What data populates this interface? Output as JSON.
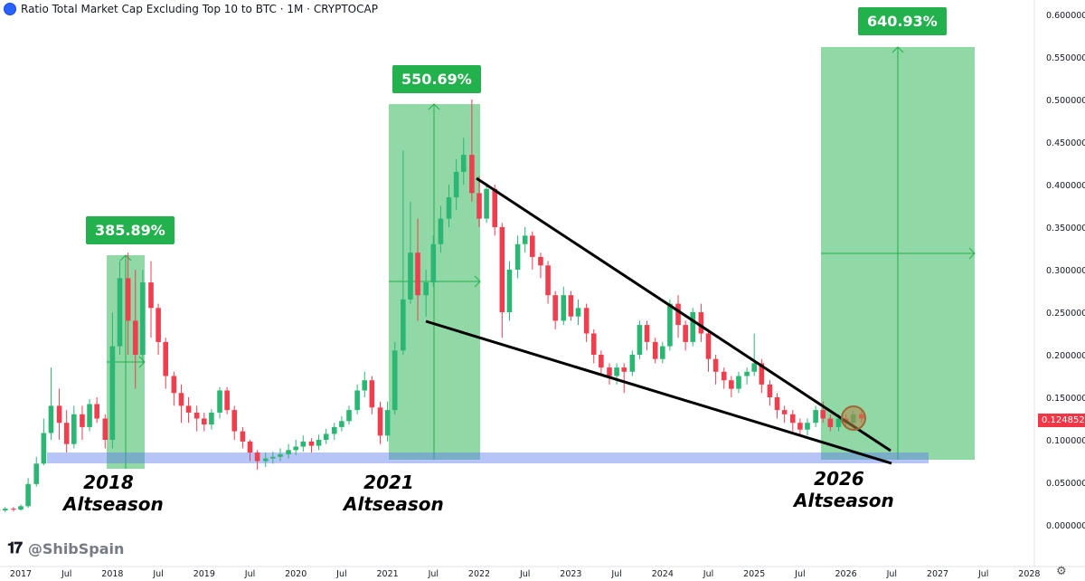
{
  "title": "Ratio Total Market Cap Excluding Top 10 to BTC · 1M · CRYPTOCAP",
  "watermark": "@ShibSpain",
  "colors": {
    "up": "#2bb673",
    "down": "#ef3e4e",
    "zone": "#22b14c",
    "support": "#5d7cf0"
  },
  "annotations": {
    "badges": [
      "385.89%",
      "550.69%",
      "640.93%"
    ],
    "seasons": [
      {
        "year": "2018",
        "label": "Altseason"
      },
      {
        "year": "2021",
        "label": "Altseason"
      },
      {
        "year": "2026",
        "label": "Altseason"
      }
    ]
  },
  "chart_data": {
    "type": "candlestick",
    "yaxis": {
      "ticks": [
        "0.600000",
        "0.550000",
        "0.500000",
        "0.450000",
        "0.400000",
        "0.350000",
        "0.300000",
        "0.250000",
        "0.200000",
        "0.150000",
        "0.100000",
        "0.050000",
        "0.000000"
      ],
      "range": [
        0,
        0.6
      ]
    },
    "xaxis": {
      "ticks": [
        "2017",
        "Jul",
        "2018",
        "Jul",
        "2019",
        "Jul",
        "2020",
        "Jul",
        "2021",
        "Jul",
        "2022",
        "Jul",
        "2023",
        "Jul",
        "2024",
        "Jul",
        "2025",
        "Jul",
        "2026",
        "Jul",
        "2027",
        "Jul",
        "2028"
      ]
    },
    "last_price": "0.124852",
    "series": [
      {
        "t": "2016.58",
        "o": 0.022,
        "c": 0.02,
        "h": 0.026,
        "l": 0.018
      },
      {
        "t": "2016.67",
        "o": 0.02,
        "c": 0.018,
        "h": 0.023,
        "l": 0.016
      },
      {
        "t": "2016.75",
        "o": 0.018,
        "c": 0.017,
        "h": 0.02,
        "l": 0.015
      },
      {
        "t": "2016.83",
        "o": 0.017,
        "c": 0.019,
        "h": 0.021,
        "l": 0.015
      },
      {
        "t": "2016.92",
        "o": 0.019,
        "c": 0.018,
        "h": 0.021,
        "l": 0.016
      },
      {
        "t": "2017.00",
        "o": 0.018,
        "c": 0.022,
        "h": 0.024,
        "l": 0.017
      },
      {
        "t": "2017.08",
        "o": 0.022,
        "c": 0.048,
        "h": 0.055,
        "l": 0.02
      },
      {
        "t": "2017.17",
        "o": 0.048,
        "c": 0.072,
        "h": 0.08,
        "l": 0.045
      },
      {
        "t": "2017.25",
        "o": 0.072,
        "c": 0.108,
        "h": 0.125,
        "l": 0.07
      },
      {
        "t": "2017.33",
        "o": 0.108,
        "c": 0.14,
        "h": 0.185,
        "l": 0.1
      },
      {
        "t": "2017.42",
        "o": 0.14,
        "c": 0.12,
        "h": 0.16,
        "l": 0.1
      },
      {
        "t": "2017.50",
        "o": 0.12,
        "c": 0.095,
        "h": 0.135,
        "l": 0.085
      },
      {
        "t": "2017.58",
        "o": 0.095,
        "c": 0.13,
        "h": 0.14,
        "l": 0.09
      },
      {
        "t": "2017.67",
        "o": 0.13,
        "c": 0.115,
        "h": 0.14,
        "l": 0.1
      },
      {
        "t": "2017.75",
        "o": 0.115,
        "c": 0.142,
        "h": 0.148,
        "l": 0.11
      },
      {
        "t": "2017.83",
        "o": 0.142,
        "c": 0.125,
        "h": 0.15,
        "l": 0.12
      },
      {
        "t": "2017.92",
        "o": 0.125,
        "c": 0.1,
        "h": 0.13,
        "l": 0.09
      },
      {
        "t": "2018.00",
        "o": 0.1,
        "c": 0.21,
        "h": 0.25,
        "l": 0.09
      },
      {
        "t": "2018.08",
        "o": 0.21,
        "c": 0.29,
        "h": 0.31,
        "l": 0.2
      },
      {
        "t": "2018.17",
        "o": 0.29,
        "c": 0.24,
        "h": 0.32,
        "l": 0.2
      },
      {
        "t": "2018.25",
        "o": 0.24,
        "c": 0.2,
        "h": 0.3,
        "l": 0.16
      },
      {
        "t": "2018.33",
        "o": 0.2,
        "c": 0.285,
        "h": 0.3,
        "l": 0.19
      },
      {
        "t": "2018.42",
        "o": 0.285,
        "c": 0.255,
        "h": 0.31,
        "l": 0.22
      },
      {
        "t": "2018.50",
        "o": 0.255,
        "c": 0.215,
        "h": 0.26,
        "l": 0.2
      },
      {
        "t": "2018.58",
        "o": 0.215,
        "c": 0.175,
        "h": 0.22,
        "l": 0.16
      },
      {
        "t": "2018.67",
        "o": 0.175,
        "c": 0.155,
        "h": 0.18,
        "l": 0.14
      },
      {
        "t": "2018.75",
        "o": 0.155,
        "c": 0.14,
        "h": 0.165,
        "l": 0.12
      },
      {
        "t": "2018.83",
        "o": 0.14,
        "c": 0.132,
        "h": 0.15,
        "l": 0.12
      },
      {
        "t": "2018.92",
        "o": 0.132,
        "c": 0.125,
        "h": 0.14,
        "l": 0.11
      },
      {
        "t": "2019.00",
        "o": 0.125,
        "c": 0.118,
        "h": 0.132,
        "l": 0.11
      },
      {
        "t": "2019.08",
        "o": 0.118,
        "c": 0.132,
        "h": 0.136,
        "l": 0.112
      },
      {
        "t": "2019.17",
        "o": 0.132,
        "c": 0.158,
        "h": 0.162,
        "l": 0.125
      },
      {
        "t": "2019.25",
        "o": 0.158,
        "c": 0.135,
        "h": 0.162,
        "l": 0.13
      },
      {
        "t": "2019.33",
        "o": 0.135,
        "c": 0.11,
        "h": 0.14,
        "l": 0.1
      },
      {
        "t": "2019.42",
        "o": 0.11,
        "c": 0.098,
        "h": 0.115,
        "l": 0.09
      },
      {
        "t": "2019.50",
        "o": 0.098,
        "c": 0.085,
        "h": 0.1,
        "l": 0.075
      },
      {
        "t": "2019.58",
        "o": 0.085,
        "c": 0.075,
        "h": 0.088,
        "l": 0.065
      },
      {
        "t": "2019.67",
        "o": 0.075,
        "c": 0.078,
        "h": 0.085,
        "l": 0.068
      },
      {
        "t": "2019.75",
        "o": 0.078,
        "c": 0.08,
        "h": 0.086,
        "l": 0.072
      },
      {
        "t": "2019.83",
        "o": 0.08,
        "c": 0.083,
        "h": 0.09,
        "l": 0.075
      },
      {
        "t": "2019.92",
        "o": 0.083,
        "c": 0.088,
        "h": 0.095,
        "l": 0.078
      },
      {
        "t": "2020.00",
        "o": 0.088,
        "c": 0.092,
        "h": 0.1,
        "l": 0.082
      },
      {
        "t": "2020.08",
        "o": 0.092,
        "c": 0.098,
        "h": 0.105,
        "l": 0.086
      },
      {
        "t": "2020.17",
        "o": 0.098,
        "c": 0.093,
        "h": 0.102,
        "l": 0.085
      },
      {
        "t": "2020.25",
        "o": 0.093,
        "c": 0.1,
        "h": 0.106,
        "l": 0.088
      },
      {
        "t": "2020.33",
        "o": 0.1,
        "c": 0.107,
        "h": 0.113,
        "l": 0.095
      },
      {
        "t": "2020.42",
        "o": 0.107,
        "c": 0.115,
        "h": 0.12,
        "l": 0.1
      },
      {
        "t": "2020.50",
        "o": 0.115,
        "c": 0.122,
        "h": 0.128,
        "l": 0.11
      },
      {
        "t": "2020.58",
        "o": 0.122,
        "c": 0.135,
        "h": 0.14,
        "l": 0.118
      },
      {
        "t": "2020.67",
        "o": 0.135,
        "c": 0.158,
        "h": 0.165,
        "l": 0.13
      },
      {
        "t": "2020.75",
        "o": 0.158,
        "c": 0.17,
        "h": 0.18,
        "l": 0.15
      },
      {
        "t": "2020.83",
        "o": 0.17,
        "c": 0.138,
        "h": 0.175,
        "l": 0.13
      },
      {
        "t": "2020.92",
        "o": 0.138,
        "c": 0.105,
        "h": 0.145,
        "l": 0.095
      },
      {
        "t": "2021.00",
        "o": 0.105,
        "c": 0.135,
        "h": 0.145,
        "l": 0.098
      },
      {
        "t": "2021.08",
        "o": 0.135,
        "c": 0.205,
        "h": 0.215,
        "l": 0.13
      },
      {
        "t": "2021.17",
        "o": 0.205,
        "c": 0.265,
        "h": 0.44,
        "l": 0.2
      },
      {
        "t": "2021.25",
        "o": 0.265,
        "c": 0.32,
        "h": 0.38,
        "l": 0.26
      },
      {
        "t": "2021.33",
        "o": 0.32,
        "c": 0.27,
        "h": 0.36,
        "l": 0.24
      },
      {
        "t": "2021.42",
        "o": 0.27,
        "c": 0.285,
        "h": 0.3,
        "l": 0.245
      },
      {
        "t": "2021.50",
        "o": 0.285,
        "c": 0.33,
        "h": 0.34,
        "l": 0.28
      },
      {
        "t": "2021.58",
        "o": 0.33,
        "c": 0.36,
        "h": 0.375,
        "l": 0.32
      },
      {
        "t": "2021.67",
        "o": 0.36,
        "c": 0.385,
        "h": 0.4,
        "l": 0.35
      },
      {
        "t": "2021.75",
        "o": 0.385,
        "c": 0.415,
        "h": 0.43,
        "l": 0.37
      },
      {
        "t": "2021.83",
        "o": 0.415,
        "c": 0.435,
        "h": 0.455,
        "l": 0.4
      },
      {
        "t": "2021.92",
        "o": 0.435,
        "c": 0.39,
        "h": 0.5,
        "l": 0.38
      },
      {
        "t": "2022.00",
        "o": 0.39,
        "c": 0.36,
        "h": 0.41,
        "l": 0.35
      },
      {
        "t": "2022.08",
        "o": 0.36,
        "c": 0.395,
        "h": 0.4,
        "l": 0.355
      },
      {
        "t": "2022.17",
        "o": 0.395,
        "c": 0.35,
        "h": 0.4,
        "l": 0.34
      },
      {
        "t": "2022.25",
        "o": 0.35,
        "c": 0.25,
        "h": 0.355,
        "l": 0.22
      },
      {
        "t": "2022.33",
        "o": 0.25,
        "c": 0.3,
        "h": 0.31,
        "l": 0.24
      },
      {
        "t": "2022.42",
        "o": 0.3,
        "c": 0.33,
        "h": 0.34,
        "l": 0.29
      },
      {
        "t": "2022.50",
        "o": 0.33,
        "c": 0.34,
        "h": 0.35,
        "l": 0.32
      },
      {
        "t": "2022.58",
        "o": 0.34,
        "c": 0.315,
        "h": 0.345,
        "l": 0.3
      },
      {
        "t": "2022.67",
        "o": 0.315,
        "c": 0.305,
        "h": 0.32,
        "l": 0.29
      },
      {
        "t": "2022.75",
        "o": 0.305,
        "c": 0.27,
        "h": 0.31,
        "l": 0.26
      },
      {
        "t": "2022.83",
        "o": 0.27,
        "c": 0.24,
        "h": 0.275,
        "l": 0.23
      },
      {
        "t": "2022.92",
        "o": 0.24,
        "c": 0.27,
        "h": 0.28,
        "l": 0.235
      },
      {
        "t": "2023.00",
        "o": 0.27,
        "c": 0.245,
        "h": 0.275,
        "l": 0.24
      },
      {
        "t": "2023.08",
        "o": 0.245,
        "c": 0.255,
        "h": 0.265,
        "l": 0.235
      },
      {
        "t": "2023.17",
        "o": 0.255,
        "c": 0.225,
        "h": 0.26,
        "l": 0.215
      },
      {
        "t": "2023.25",
        "o": 0.225,
        "c": 0.2,
        "h": 0.23,
        "l": 0.19
      },
      {
        "t": "2023.33",
        "o": 0.2,
        "c": 0.185,
        "h": 0.205,
        "l": 0.175
      },
      {
        "t": "2023.42",
        "o": 0.185,
        "c": 0.175,
        "h": 0.19,
        "l": 0.165
      },
      {
        "t": "2023.50",
        "o": 0.175,
        "c": 0.185,
        "h": 0.19,
        "l": 0.165
      },
      {
        "t": "2023.58",
        "o": 0.185,
        "c": 0.18,
        "h": 0.19,
        "l": 0.155
      },
      {
        "t": "2023.67",
        "o": 0.18,
        "c": 0.2,
        "h": 0.205,
        "l": 0.175
      },
      {
        "t": "2023.75",
        "o": 0.2,
        "c": 0.235,
        "h": 0.24,
        "l": 0.195
      },
      {
        "t": "2023.83",
        "o": 0.235,
        "c": 0.215,
        "h": 0.24,
        "l": 0.205
      },
      {
        "t": "2023.92",
        "o": 0.215,
        "c": 0.195,
        "h": 0.22,
        "l": 0.19
      },
      {
        "t": "2024.00",
        "o": 0.195,
        "c": 0.21,
        "h": 0.215,
        "l": 0.19
      },
      {
        "t": "2024.08",
        "o": 0.21,
        "c": 0.26,
        "h": 0.265,
        "l": 0.205
      },
      {
        "t": "2024.17",
        "o": 0.26,
        "c": 0.235,
        "h": 0.27,
        "l": 0.22
      },
      {
        "t": "2024.25",
        "o": 0.235,
        "c": 0.215,
        "h": 0.24,
        "l": 0.205
      },
      {
        "t": "2024.33",
        "o": 0.215,
        "c": 0.25,
        "h": 0.255,
        "l": 0.21
      },
      {
        "t": "2024.42",
        "o": 0.25,
        "c": 0.225,
        "h": 0.26,
        "l": 0.215
      },
      {
        "t": "2024.50",
        "o": 0.225,
        "c": 0.195,
        "h": 0.23,
        "l": 0.18
      },
      {
        "t": "2024.58",
        "o": 0.195,
        "c": 0.18,
        "h": 0.2,
        "l": 0.165
      },
      {
        "t": "2024.67",
        "o": 0.18,
        "c": 0.17,
        "h": 0.185,
        "l": 0.16
      },
      {
        "t": "2024.75",
        "o": 0.17,
        "c": 0.16,
        "h": 0.175,
        "l": 0.15
      },
      {
        "t": "2024.83",
        "o": 0.16,
        "c": 0.175,
        "h": 0.18,
        "l": 0.155
      },
      {
        "t": "2024.92",
        "o": 0.175,
        "c": 0.18,
        "h": 0.185,
        "l": 0.165
      },
      {
        "t": "2025.00",
        "o": 0.18,
        "c": 0.19,
        "h": 0.225,
        "l": 0.175
      },
      {
        "t": "2025.08",
        "o": 0.19,
        "c": 0.165,
        "h": 0.195,
        "l": 0.155
      },
      {
        "t": "2025.17",
        "o": 0.165,
        "c": 0.15,
        "h": 0.17,
        "l": 0.14
      },
      {
        "t": "2025.25",
        "o": 0.15,
        "c": 0.135,
        "h": 0.155,
        "l": 0.125
      },
      {
        "t": "2025.33",
        "o": 0.135,
        "c": 0.13,
        "h": 0.14,
        "l": 0.12
      },
      {
        "t": "2025.42",
        "o": 0.13,
        "c": 0.12,
        "h": 0.135,
        "l": 0.11
      },
      {
        "t": "2025.50",
        "o": 0.12,
        "c": 0.112,
        "h": 0.125,
        "l": 0.105
      },
      {
        "t": "2025.58",
        "o": 0.112,
        "c": 0.12,
        "h": 0.125,
        "l": 0.105
      },
      {
        "t": "2025.67",
        "o": 0.12,
        "c": 0.135,
        "h": 0.14,
        "l": 0.115
      },
      {
        "t": "2025.75",
        "o": 0.135,
        "c": 0.125,
        "h": 0.145,
        "l": 0.12
      },
      {
        "t": "2025.83",
        "o": 0.125,
        "c": 0.115,
        "h": 0.13,
        "l": 0.11
      },
      {
        "t": "2025.92",
        "o": 0.115,
        "c": 0.125,
        "h": 0.13,
        "l": 0.11
      },
      {
        "t": "2026.00",
        "o": 0.125,
        "c": 0.12,
        "h": 0.13,
        "l": 0.115
      },
      {
        "t": "2026.08",
        "o": 0.12,
        "c": 0.13,
        "h": 0.135,
        "l": 0.115
      },
      {
        "t": "2026.17",
        "o": 0.13,
        "c": 0.125,
        "h": 0.135,
        "l": 0.12
      }
    ]
  }
}
